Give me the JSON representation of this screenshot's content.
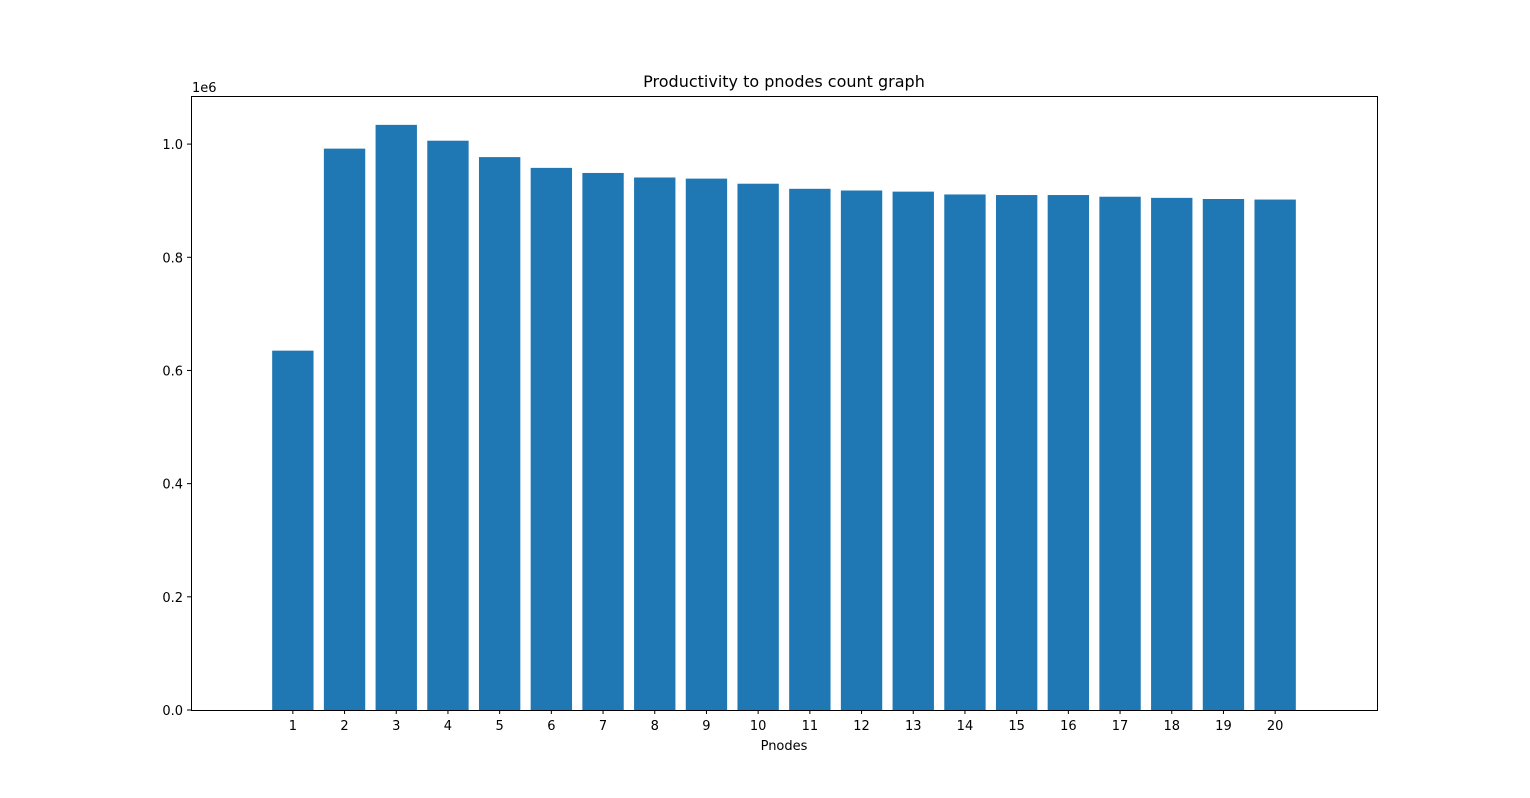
{
  "chart_data": {
    "type": "bar",
    "title": "Productivity to pnodes count graph",
    "xlabel": "Pnodes",
    "ylabel": "",
    "y_offset_label": "1e6",
    "categories": [
      "1",
      "2",
      "3",
      "4",
      "5",
      "6",
      "7",
      "8",
      "9",
      "10",
      "11",
      "12",
      "13",
      "14",
      "15",
      "16",
      "17",
      "18",
      "19",
      "20"
    ],
    "values": [
      635000,
      992000,
      1034000,
      1006000,
      977000,
      958000,
      949000,
      941000,
      939000,
      930000,
      921000,
      918000,
      916000,
      911000,
      910000,
      910000,
      907000,
      905000,
      903000,
      902000
    ],
    "ylim": [
      0,
      1085000
    ],
    "yticks": [
      0,
      200000,
      400000,
      600000,
      800000,
      1000000
    ],
    "ytick_labels": [
      "0.0",
      "0.2",
      "0.4",
      "0.6",
      "0.8",
      "1.0"
    ],
    "bar_color": "#1f77b4",
    "grid": false,
    "legend": "none"
  }
}
